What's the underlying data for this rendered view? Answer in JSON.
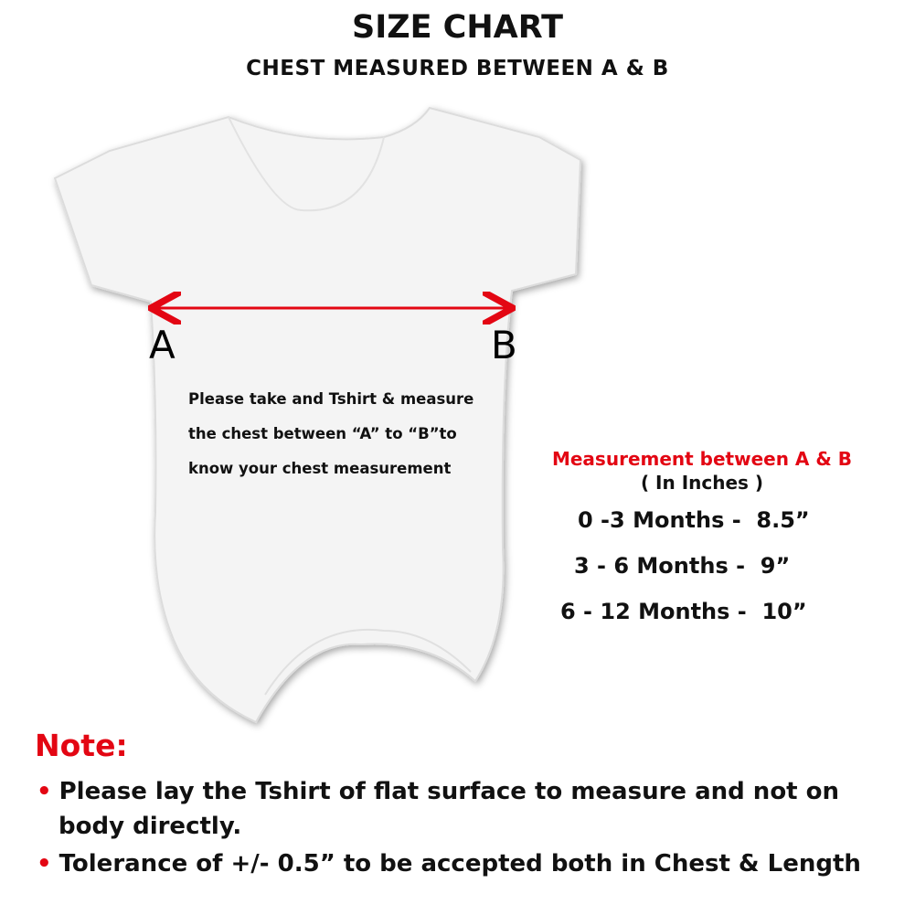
{
  "header": {
    "title": "SIZE CHART",
    "subtitle": "CHEST MEASURED BETWEEN A & B"
  },
  "diagram": {
    "point_a": "A",
    "point_b": "B",
    "arrow_color": "#e30613",
    "instructions": [
      "Please take and Tshirt & measure",
      "the chest between “A” to “B”to",
      "know your chest measurement"
    ]
  },
  "measurements": {
    "title": "Measurement between A & B",
    "unit": "( In Inches )",
    "rows": [
      {
        "age": "0 -3 Months -",
        "size": "8.5”"
      },
      {
        "age": "3 - 6 Months -",
        "size": "9”"
      },
      {
        "age": "6 - 12 Months -",
        "size": "10”"
      }
    ]
  },
  "note": {
    "heading": "Note:",
    "bullets": [
      "Please lay the Tshirt of flat surface to measure and not on",
      "body directly.",
      "Tolerance of +/- 0.5” to be accepted both in Chest & Length"
    ]
  },
  "colors": {
    "accent": "#e30613"
  }
}
